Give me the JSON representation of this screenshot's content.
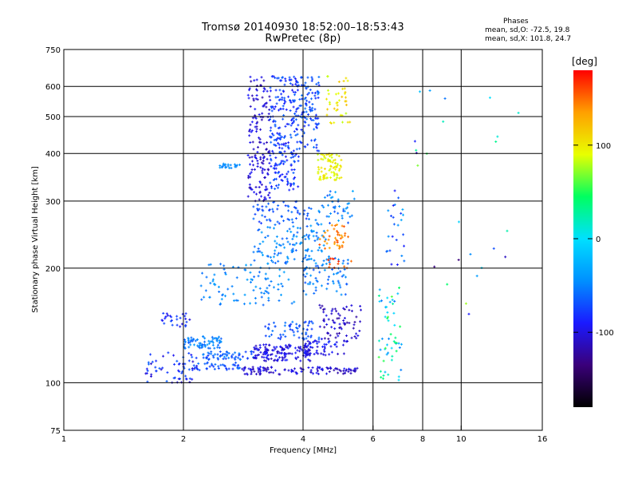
{
  "chart_data": {
    "type": "scatter",
    "title": "Tromsø 20140930 18:52:00–18:53:43",
    "subtitle": "RwPretec (8p)",
    "xlabel": "Frequency [MHz]",
    "ylabel": "Stationary phase Virtual Height [km]",
    "x_scale": "log",
    "y_scale": "log",
    "xlim": [
      1,
      16
    ],
    "ylim": [
      75,
      750
    ],
    "x_ticks": [
      1,
      2,
      4,
      6,
      8,
      10,
      16
    ],
    "x_tick_labels": [
      "1",
      "2",
      "4",
      "6",
      "8",
      "10",
      "16"
    ],
    "y_ticks": [
      75,
      100,
      200,
      300,
      400,
      500,
      600,
      750
    ],
    "y_tick_labels": [
      "75",
      "100",
      "200",
      "300",
      "400",
      "500",
      "600",
      "750"
    ],
    "grid": true,
    "stats": {
      "title": "Phases",
      "o_mode": "mean, sd,O: -72.5, 19.8",
      "x_mode": "mean, sd,X: 101.8, 24.7"
    },
    "colorbar": {
      "unit": "[deg]",
      "range": [
        -180,
        180
      ],
      "ticks": [
        100,
        0,
        -100
      ],
      "tick_labels": [
        "100",
        "0",
        "-100"
      ],
      "colormap": [
        "#000000",
        "#3a007a",
        "#1a1aff",
        "#0090ff",
        "#00e0ff",
        "#00ff60",
        "#e8ff00",
        "#ffa000",
        "#ff0000"
      ]
    },
    "clusters": [
      {
        "x": [
          1.6,
          2.2
        ],
        "y": [
          100,
          120
        ],
        "phase": [
          -110,
          -60
        ],
        "n": 60
      },
      {
        "x": [
          1.75,
          2.1
        ],
        "y": [
          140,
          153
        ],
        "phase": [
          -105,
          -70
        ],
        "n": 28
      },
      {
        "x": [
          2.0,
          2.5
        ],
        "y": [
          123,
          133
        ],
        "phase": [
          -65,
          -40
        ],
        "n": 70
      },
      {
        "x": [
          2.2,
          3.0
        ],
        "y": [
          115,
          121
        ],
        "phase": [
          -80,
          -45
        ],
        "n": 55
      },
      {
        "x": [
          2.0,
          2.8
        ],
        "y": [
          108,
          113
        ],
        "phase": [
          -85,
          -55
        ],
        "n": 40
      },
      {
        "x": [
          3.0,
          4.2
        ],
        "y": [
          114,
          126
        ],
        "phase": [
          -115,
          -85
        ],
        "n": 140
      },
      {
        "x": [
          2.8,
          5.5
        ],
        "y": [
          105,
          110
        ],
        "phase": [
          -120,
          -90
        ],
        "n": 110
      },
      {
        "x": [
          4.0,
          5.2
        ],
        "y": [
          118,
          130
        ],
        "phase": [
          -110,
          -80
        ],
        "n": 60
      },
      {
        "x": [
          4.4,
          5.6
        ],
        "y": [
          130,
          160
        ],
        "phase": [
          -125,
          -95
        ],
        "n": 70
      },
      {
        "x": [
          3.2,
          4.4
        ],
        "y": [
          130,
          145
        ],
        "phase": [
          -80,
          -50
        ],
        "n": 60
      },
      {
        "x": [
          2.2,
          3.8
        ],
        "y": [
          160,
          205
        ],
        "phase": [
          -60,
          -35
        ],
        "n": 90
      },
      {
        "x": [
          3.0,
          4.6
        ],
        "y": [
          205,
          260
        ],
        "phase": [
          -65,
          -35
        ],
        "n": 120
      },
      {
        "x": [
          4.0,
          5.2
        ],
        "y": [
          170,
          215
        ],
        "phase": [
          -70,
          -40
        ],
        "n": 70
      },
      {
        "x": [
          2.9,
          3.3
        ],
        "y": [
          300,
          650
        ],
        "phase": [
          -120,
          -90
        ],
        "n": 150
      },
      {
        "x": [
          3.3,
          3.9
        ],
        "y": [
          320,
          640
        ],
        "phase": [
          -95,
          -60
        ],
        "n": 240
      },
      {
        "x": [
          3.9,
          4.4
        ],
        "y": [
          400,
          640
        ],
        "phase": [
          -85,
          -55
        ],
        "n": 100
      },
      {
        "x": [
          3.0,
          4.2
        ],
        "y": [
          260,
          300
        ],
        "phase": [
          -80,
          -55
        ],
        "n": 60
      },
      {
        "x": [
          2.45,
          2.8
        ],
        "y": [
          366,
          376
        ],
        "phase": [
          -55,
          -40
        ],
        "n": 22
      },
      {
        "x": [
          4.35,
          5.0
        ],
        "y": [
          340,
          400
        ],
        "phase": [
          80,
          110
        ],
        "n": 80
      },
      {
        "x": [
          4.55,
          5.25
        ],
        "y": [
          480,
          640
        ],
        "phase": [
          80,
          120
        ],
        "n": 40
      },
      {
        "x": [
          4.4,
          5.2
        ],
        "y": [
          225,
          260
        ],
        "phase": [
          130,
          160
        ],
        "n": 40
      },
      {
        "x": [
          4.6,
          5.3
        ],
        "y": [
          200,
          212
        ],
        "phase": [
          150,
          175
        ],
        "n": 12
      },
      {
        "x": [
          4.3,
          5.4
        ],
        "y": [
          260,
          320
        ],
        "phase": [
          -70,
          -30
        ],
        "n": 45
      },
      {
        "x": [
          6.2,
          7.1
        ],
        "y": [
          100,
          180
        ],
        "phase": [
          -60,
          60
        ],
        "n": 55
      },
      {
        "x": [
          6.4,
          7.2
        ],
        "y": [
          200,
          320
        ],
        "phase": [
          -110,
          -30
        ],
        "n": 25
      },
      {
        "x": [
          7.5,
          14.0
        ],
        "y": [
          150,
          600
        ],
        "phase": [
          -140,
          80
        ],
        "n": 25
      }
    ]
  }
}
